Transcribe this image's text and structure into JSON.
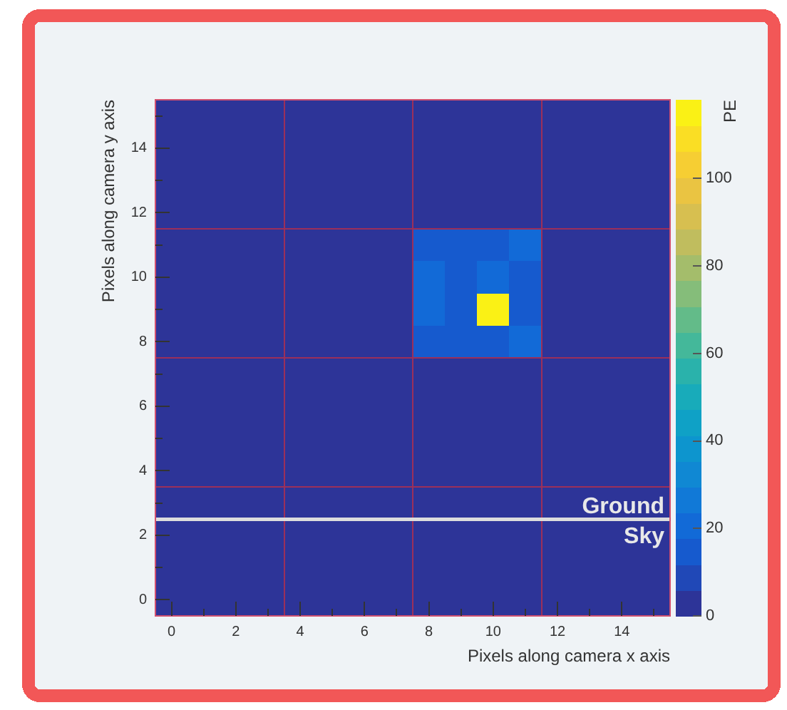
{
  "chart_data": {
    "type": "heatmap",
    "xlabel": "Pixels along camera x axis",
    "ylabel": "Pixels along camera y axis",
    "clabel": "PE",
    "xlim": [
      -0.5,
      15.5
    ],
    "ylim": [
      -0.5,
      15.5
    ],
    "xticks": [
      0,
      {
        "value": 1,
        "label": null
      },
      2,
      {
        "value": 3,
        "label": null
      },
      4,
      {
        "value": 5,
        "label": null
      },
      6,
      {
        "value": 7,
        "label": null
      },
      8,
      {
        "value": 9,
        "label": null
      },
      10,
      {
        "value": 11,
        "label": null
      },
      12,
      {
        "value": 13,
        "label": null
      },
      14,
      {
        "value": 15,
        "label": null
      }
    ],
    "yticks": [
      0,
      {
        "value": 1,
        "label": null
      },
      2,
      {
        "value": 3,
        "label": null
      },
      4,
      {
        "value": 5,
        "label": null
      },
      6,
      {
        "value": 7,
        "label": null
      },
      8,
      {
        "value": 9,
        "label": null
      },
      10,
      {
        "value": 11,
        "label": null
      },
      12,
      {
        "value": 13,
        "label": null
      },
      14,
      {
        "value": 15,
        "label": null
      }
    ],
    "clim": [
      0,
      118
    ],
    "cticks": [
      0,
      20,
      40,
      60,
      80,
      100
    ],
    "cells": [
      [
        0,
        0,
        0,
        0,
        0,
        0,
        0,
        0,
        0,
        0,
        0,
        0,
        0,
        0,
        0,
        0
      ],
      [
        0,
        0,
        0,
        0,
        0,
        0,
        0,
        0,
        0,
        0,
        0,
        0,
        0,
        0,
        0,
        0
      ],
      [
        0,
        0,
        0,
        0,
        0,
        0,
        0,
        0,
        0,
        0,
        0,
        0,
        0,
        0,
        0,
        0
      ],
      [
        0,
        0,
        0,
        0,
        0,
        0,
        0,
        0,
        0,
        0,
        0,
        0,
        0,
        0,
        0,
        0
      ],
      [
        0,
        0,
        0,
        0,
        0,
        0,
        0,
        0,
        15,
        15,
        15,
        22,
        0,
        0,
        0,
        0
      ],
      [
        0,
        0,
        0,
        0,
        0,
        0,
        0,
        0,
        22,
        15,
        20,
        15,
        0,
        0,
        0,
        0
      ],
      [
        0,
        0,
        0,
        0,
        0,
        0,
        0,
        0,
        22,
        15,
        118,
        15,
        0,
        0,
        0,
        0
      ],
      [
        0,
        0,
        0,
        0,
        0,
        0,
        0,
        0,
        15,
        15,
        15,
        22,
        0,
        0,
        0,
        0
      ],
      [
        0,
        0,
        0,
        0,
        0,
        0,
        0,
        0,
        0,
        0,
        0,
        0,
        0,
        0,
        0,
        0
      ],
      [
        0,
        0,
        0,
        0,
        0,
        0,
        0,
        0,
        0,
        0,
        0,
        0,
        0,
        0,
        0,
        0
      ],
      [
        0,
        0,
        0,
        0,
        0,
        0,
        0,
        0,
        0,
        0,
        0,
        0,
        0,
        0,
        0,
        0
      ],
      [
        0,
        0,
        0,
        0,
        0,
        0,
        0,
        0,
        0,
        0,
        0,
        0,
        0,
        0,
        0,
        0
      ],
      [
        0,
        0,
        0,
        0,
        0,
        0,
        0,
        0,
        0,
        0,
        0,
        0,
        0,
        0,
        0,
        0
      ],
      [
        0,
        0,
        0,
        0,
        0,
        0,
        0,
        0,
        0,
        0,
        0,
        0,
        0,
        0,
        0,
        0
      ],
      [
        0,
        0,
        0,
        0,
        0,
        0,
        0,
        0,
        0,
        0,
        0,
        0,
        0,
        0,
        0,
        0
      ],
      [
        0,
        0,
        0,
        0,
        0,
        0,
        0,
        0,
        0,
        0,
        0,
        0,
        0,
        0,
        0,
        0
      ]
    ],
    "ref_lines": [
      {
        "axis": "x",
        "value": 3.5,
        "color": "#9b2f5a"
      },
      {
        "axis": "x",
        "value": 7.5,
        "color": "#9b2f5a"
      },
      {
        "axis": "x",
        "value": 11.5,
        "color": "#9b2f5a"
      },
      {
        "axis": "y",
        "value": 3.5,
        "color": "#9b2f5a"
      },
      {
        "axis": "y",
        "value": 7.5,
        "color": "#9b2f5a"
      },
      {
        "axis": "y",
        "value": 11.5,
        "color": "#9b2f5a"
      },
      {
        "axis": "y",
        "value": 2.5,
        "color": "#dddddd"
      }
    ],
    "annotations": [
      "Ground",
      "Sky"
    ]
  }
}
